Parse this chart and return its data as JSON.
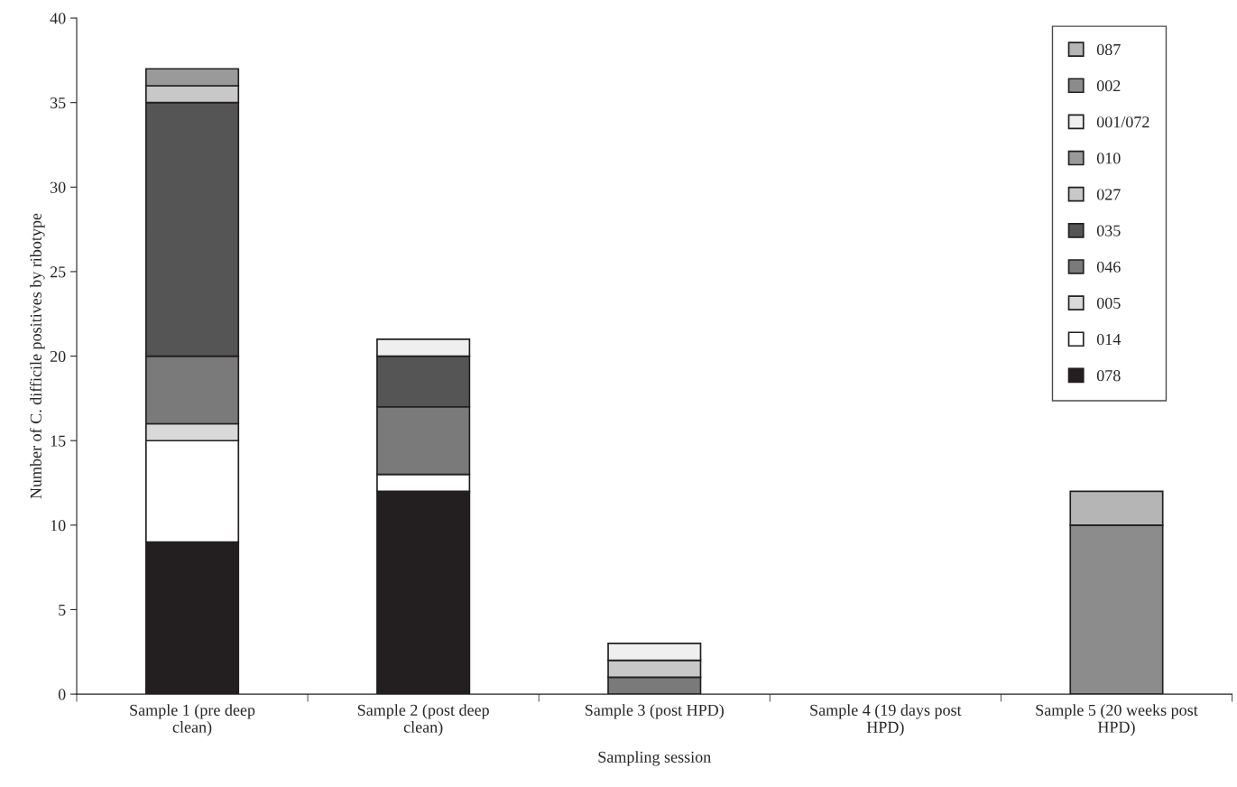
{
  "chart_data": {
    "type": "bar",
    "stacked": true,
    "xlabel": "Sampling session",
    "ylabel": "Number of C. difficile positives by ribotype",
    "categories": [
      "Sample 1 (pre deep\nclean)",
      "Sample 2 (post deep\nclean)",
      "Sample 3 (post HPD)",
      "Sample 4 (19 days post\nHPD)",
      "Sample 5 (20 weeks post\nHPD)"
    ],
    "series": [
      {
        "name": "078",
        "color": "#231f20",
        "values": [
          9,
          12,
          null,
          null,
          null
        ]
      },
      {
        "name": "014",
        "color": "#ffffff",
        "values": [
          6,
          1,
          null,
          null,
          null
        ]
      },
      {
        "name": "005",
        "color": "#d9d9d9",
        "values": [
          1,
          null,
          null,
          null,
          null
        ]
      },
      {
        "name": "046",
        "color": "#7a7a7a",
        "values": [
          4,
          4,
          1,
          null,
          null
        ]
      },
      {
        "name": "035",
        "color": "#555555",
        "values": [
          15,
          3,
          null,
          null,
          null
        ]
      },
      {
        "name": "027",
        "color": "#c8c8c8",
        "values": [
          1,
          null,
          1,
          null,
          null
        ]
      },
      {
        "name": "010",
        "color": "#9a9a9a",
        "values": [
          1,
          null,
          null,
          null,
          null
        ]
      },
      {
        "name": "001/072",
        "color": "#efefef",
        "values": [
          null,
          1,
          1,
          null,
          null
        ]
      },
      {
        "name": "002",
        "color": "#8c8c8c",
        "values": [
          null,
          null,
          null,
          null,
          10
        ]
      },
      {
        "name": "087",
        "color": "#b5b5b5",
        "values": [
          null,
          null,
          null,
          null,
          2
        ]
      }
    ],
    "ylim": [
      0,
      40
    ],
    "yticks": [
      0,
      5,
      10,
      15,
      20,
      25,
      30,
      35,
      40
    ],
    "legend": "top right",
    "grid": false
  }
}
